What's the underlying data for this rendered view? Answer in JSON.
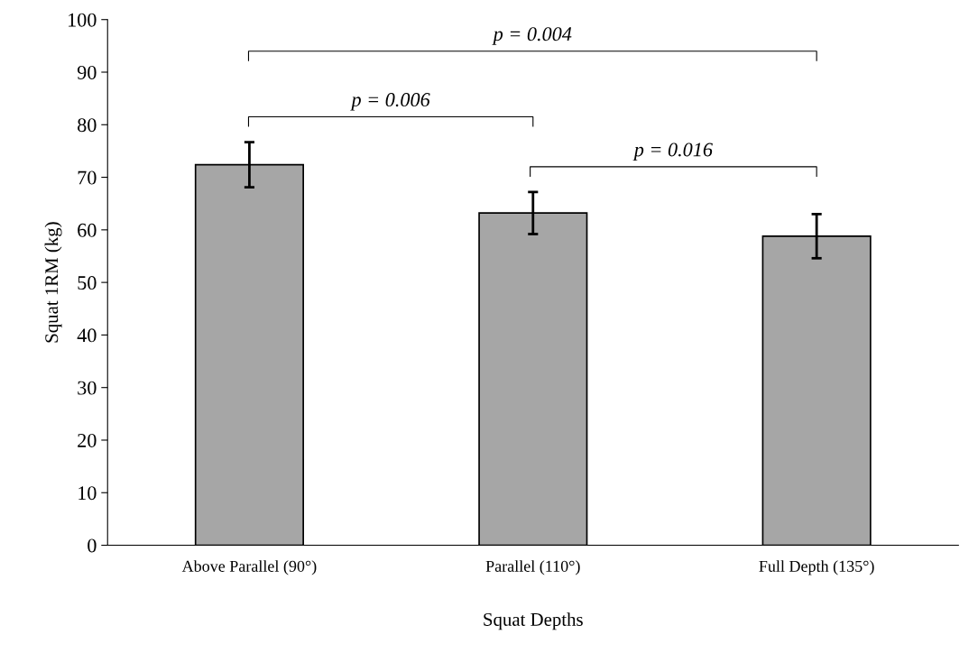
{
  "chart_data": {
    "type": "bar",
    "xlabel": "Squat Depths",
    "ylabel": "Squat 1RM (kg)",
    "categories": [
      "Above Parallel (90°)",
      "Parallel (110°)",
      "Full Depth (135°)"
    ],
    "values": [
      72.4,
      63.2,
      58.8
    ],
    "errors": [
      4.3,
      4.0,
      4.2
    ],
    "color": "#a6a6a6",
    "ylim": [
      0,
      100
    ],
    "yticks": [
      0,
      10,
      20,
      30,
      40,
      50,
      60,
      70,
      80,
      90,
      100
    ],
    "grid": false,
    "legend": false,
    "annotations": [
      "p = 0.004",
      "p = 0.006",
      "p = 0.016"
    ]
  }
}
